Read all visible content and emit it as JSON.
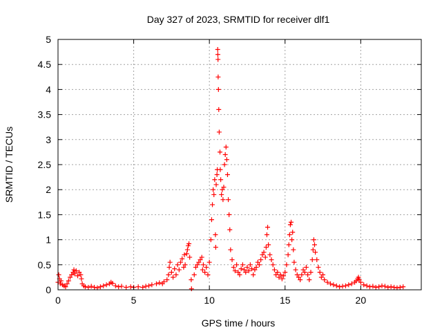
{
  "chart_data": {
    "type": "scatter",
    "title": "Day 327 of 2023, SRMTID for receiver dlf1",
    "xlabel": "GPS time / hours",
    "ylabel": "SRMTID / TECUs",
    "xlim": [
      0,
      24
    ],
    "ylim": [
      0,
      5
    ],
    "grid": true,
    "marker": "+",
    "color": "#ff0000",
    "x_ticks": [
      0,
      5,
      10,
      15,
      20
    ],
    "x_tick_labels": [
      "0",
      "5",
      "10",
      "15",
      "20"
    ],
    "y_ticks": [
      0,
      0.5,
      1,
      1.5,
      2,
      2.5,
      3,
      3.5,
      4,
      4.5,
      5
    ],
    "y_tick_labels": [
      "0",
      "0.5",
      "1",
      "1.5",
      "2",
      "2.5",
      "3",
      "3.5",
      "4",
      "4.5",
      "5"
    ],
    "series": [
      {
        "name": "SRMTID",
        "points": [
          [
            0.0,
            0.15
          ],
          [
            0.05,
            0.3
          ],
          [
            0.1,
            0.22
          ],
          [
            0.15,
            0.12
          ],
          [
            0.2,
            0.18
          ],
          [
            0.3,
            0.1
          ],
          [
            0.4,
            0.08
          ],
          [
            0.5,
            0.06
          ],
          [
            0.6,
            0.12
          ],
          [
            0.7,
            0.18
          ],
          [
            0.8,
            0.25
          ],
          [
            0.9,
            0.3
          ],
          [
            1.0,
            0.35
          ],
          [
            1.05,
            0.4
          ],
          [
            1.1,
            0.32
          ],
          [
            1.2,
            0.38
          ],
          [
            1.3,
            0.28
          ],
          [
            1.4,
            0.35
          ],
          [
            1.5,
            0.3
          ],
          [
            1.55,
            0.22
          ],
          [
            1.6,
            0.12
          ],
          [
            1.7,
            0.08
          ],
          [
            1.8,
            0.06
          ],
          [
            2.0,
            0.05
          ],
          [
            2.2,
            0.07
          ],
          [
            2.4,
            0.05
          ],
          [
            2.6,
            0.04
          ],
          [
            2.8,
            0.06
          ],
          [
            3.0,
            0.08
          ],
          [
            3.2,
            0.1
          ],
          [
            3.4,
            0.12
          ],
          [
            3.5,
            0.15
          ],
          [
            3.6,
            0.13
          ],
          [
            3.8,
            0.08
          ],
          [
            4.0,
            0.06
          ],
          [
            4.2,
            0.07
          ],
          [
            4.5,
            0.05
          ],
          [
            4.8,
            0.06
          ],
          [
            5.0,
            0.05
          ],
          [
            5.3,
            0.06
          ],
          [
            5.6,
            0.05
          ],
          [
            5.8,
            0.07
          ],
          [
            6.0,
            0.08
          ],
          [
            6.2,
            0.1
          ],
          [
            6.5,
            0.12
          ],
          [
            6.7,
            0.14
          ],
          [
            6.9,
            0.12
          ],
          [
            7.0,
            0.16
          ],
          [
            7.2,
            0.2
          ],
          [
            7.3,
            0.3
          ],
          [
            7.35,
            0.45
          ],
          [
            7.4,
            0.55
          ],
          [
            7.5,
            0.35
          ],
          [
            7.6,
            0.25
          ],
          [
            7.7,
            0.42
          ],
          [
            7.8,
            0.3
          ],
          [
            7.9,
            0.5
          ],
          [
            8.0,
            0.4
          ],
          [
            8.1,
            0.55
          ],
          [
            8.2,
            0.62
          ],
          [
            8.3,
            0.45
          ],
          [
            8.35,
            0.7
          ],
          [
            8.4,
            0.5
          ],
          [
            8.5,
            0.72
          ],
          [
            8.55,
            0.8
          ],
          [
            8.6,
            0.88
          ],
          [
            8.65,
            0.92
          ],
          [
            8.7,
            0.65
          ],
          [
            8.8,
            0.2
          ],
          [
            8.82,
            0.02
          ],
          [
            9.0,
            0.3
          ],
          [
            9.1,
            0.45
          ],
          [
            9.2,
            0.5
          ],
          [
            9.3,
            0.55
          ],
          [
            9.4,
            0.6
          ],
          [
            9.5,
            0.65
          ],
          [
            9.55,
            0.4
          ],
          [
            9.6,
            0.5
          ],
          [
            9.7,
            0.35
          ],
          [
            9.8,
            0.45
          ],
          [
            9.9,
            0.3
          ],
          [
            10.0,
            0.55
          ],
          [
            10.1,
            1.0
          ],
          [
            10.15,
            1.4
          ],
          [
            10.2,
            1.7
          ],
          [
            10.25,
            2.0
          ],
          [
            10.3,
            1.9
          ],
          [
            10.35,
            2.2
          ],
          [
            10.4,
            1.1
          ],
          [
            10.42,
            0.85
          ],
          [
            10.45,
            2.1
          ],
          [
            10.5,
            2.3
          ],
          [
            10.52,
            2.4
          ],
          [
            10.55,
            4.8
          ],
          [
            10.56,
            4.7
          ],
          [
            10.57,
            4.6
          ],
          [
            10.58,
            4.25
          ],
          [
            10.6,
            4.0
          ],
          [
            10.62,
            3.6
          ],
          [
            10.65,
            3.15
          ],
          [
            10.7,
            2.75
          ],
          [
            10.72,
            2.4
          ],
          [
            10.75,
            2.2
          ],
          [
            10.8,
            1.9
          ],
          [
            10.85,
            2.0
          ],
          [
            10.9,
            1.8
          ],
          [
            10.95,
            2.05
          ],
          [
            11.0,
            2.5
          ],
          [
            11.05,
            2.7
          ],
          [
            11.1,
            2.85
          ],
          [
            11.15,
            2.6
          ],
          [
            11.2,
            2.3
          ],
          [
            11.25,
            1.8
          ],
          [
            11.3,
            1.5
          ],
          [
            11.35,
            1.2
          ],
          [
            11.4,
            0.8
          ],
          [
            11.5,
            0.6
          ],
          [
            11.6,
            0.45
          ],
          [
            11.7,
            0.38
          ],
          [
            11.8,
            0.5
          ],
          [
            11.9,
            0.35
          ],
          [
            12.0,
            0.3
          ],
          [
            12.1,
            0.42
          ],
          [
            12.2,
            0.5
          ],
          [
            12.3,
            0.4
          ],
          [
            12.4,
            0.35
          ],
          [
            12.5,
            0.45
          ],
          [
            12.6,
            0.38
          ],
          [
            12.7,
            0.5
          ],
          [
            12.8,
            0.42
          ],
          [
            12.9,
            0.3
          ],
          [
            13.0,
            0.4
          ],
          [
            13.1,
            0.45
          ],
          [
            13.2,
            0.55
          ],
          [
            13.3,
            0.5
          ],
          [
            13.4,
            0.6
          ],
          [
            13.5,
            0.7
          ],
          [
            13.6,
            0.75
          ],
          [
            13.7,
            0.65
          ],
          [
            13.75,
            0.85
          ],
          [
            13.8,
            1.1
          ],
          [
            13.85,
            1.25
          ],
          [
            13.9,
            0.9
          ],
          [
            14.0,
            0.7
          ],
          [
            14.1,
            0.6
          ],
          [
            14.2,
            0.5
          ],
          [
            14.3,
            0.4
          ],
          [
            14.4,
            0.3
          ],
          [
            14.5,
            0.35
          ],
          [
            14.6,
            0.25
          ],
          [
            14.7,
            0.3
          ],
          [
            14.8,
            0.22
          ],
          [
            14.9,
            0.28
          ],
          [
            15.0,
            0.35
          ],
          [
            15.1,
            0.5
          ],
          [
            15.2,
            0.7
          ],
          [
            15.25,
            0.9
          ],
          [
            15.3,
            1.1
          ],
          [
            15.35,
            1.3
          ],
          [
            15.4,
            1.35
          ],
          [
            15.45,
            1.0
          ],
          [
            15.5,
            1.15
          ],
          [
            15.55,
            0.8
          ],
          [
            15.6,
            0.55
          ],
          [
            15.7,
            0.4
          ],
          [
            15.8,
            0.3
          ],
          [
            15.9,
            0.25
          ],
          [
            16.0,
            0.2
          ],
          [
            16.1,
            0.3
          ],
          [
            16.2,
            0.4
          ],
          [
            16.3,
            0.35
          ],
          [
            16.4,
            0.45
          ],
          [
            16.5,
            0.3
          ],
          [
            16.6,
            0.2
          ],
          [
            16.7,
            0.35
          ],
          [
            16.8,
            0.6
          ],
          [
            16.85,
            0.8
          ],
          [
            16.9,
            1.0
          ],
          [
            16.95,
            0.9
          ],
          [
            17.0,
            0.75
          ],
          [
            17.1,
            0.6
          ],
          [
            17.2,
            0.45
          ],
          [
            17.3,
            0.35
          ],
          [
            17.4,
            0.25
          ],
          [
            17.5,
            0.3
          ],
          [
            17.6,
            0.2
          ],
          [
            17.8,
            0.15
          ],
          [
            18.0,
            0.12
          ],
          [
            18.2,
            0.1
          ],
          [
            18.4,
            0.08
          ],
          [
            18.6,
            0.06
          ],
          [
            18.8,
            0.07
          ],
          [
            19.0,
            0.08
          ],
          [
            19.2,
            0.1
          ],
          [
            19.4,
            0.12
          ],
          [
            19.6,
            0.15
          ],
          [
            19.7,
            0.18
          ],
          [
            19.8,
            0.22
          ],
          [
            19.85,
            0.25
          ],
          [
            19.9,
            0.2
          ],
          [
            20.0,
            0.15
          ],
          [
            20.2,
            0.1
          ],
          [
            20.4,
            0.08
          ],
          [
            20.6,
            0.06
          ],
          [
            20.8,
            0.07
          ],
          [
            21.0,
            0.05
          ],
          [
            21.2,
            0.06
          ],
          [
            21.4,
            0.08
          ],
          [
            21.6,
            0.07
          ],
          [
            21.8,
            0.05
          ],
          [
            22.0,
            0.06
          ],
          [
            22.2,
            0.05
          ],
          [
            22.4,
            0.04
          ],
          [
            22.6,
            0.05
          ],
          [
            22.8,
            0.06
          ]
        ]
      }
    ]
  }
}
